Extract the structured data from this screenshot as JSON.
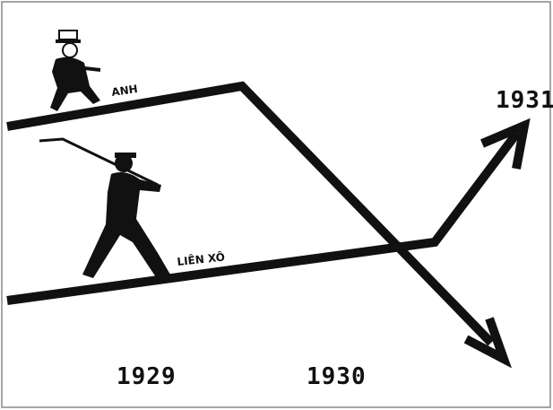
{
  "lines": {
    "upper": "ANH",
    "lower": "LIÊN XÔ"
  },
  "years": [
    "1929",
    "1930",
    "1931"
  ]
}
